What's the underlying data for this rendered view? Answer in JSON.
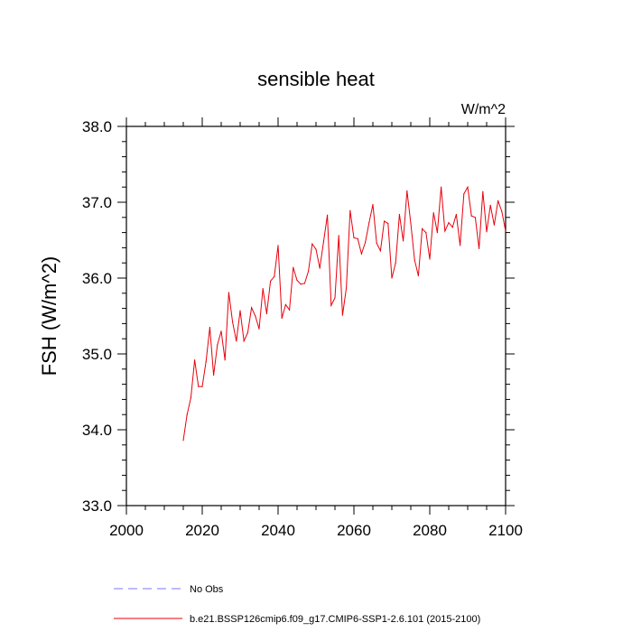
{
  "chart_data": {
    "type": "line",
    "title": "sensible heat",
    "units_label": "W/m^2",
    "xlabel": "",
    "ylabel": "FSH  (W/m^2)",
    "xlim": [
      2000,
      2100
    ],
    "ylim": [
      33.0,
      38.0
    ],
    "x_ticks": [
      2000,
      2020,
      2040,
      2060,
      2080,
      2100
    ],
    "x_tick_labels": [
      "2000",
      "2020",
      "2040",
      "2060",
      "2080",
      "2100"
    ],
    "y_ticks": [
      33.0,
      34.0,
      35.0,
      36.0,
      37.0,
      38.0
    ],
    "y_tick_labels": [
      "33.0",
      "34.0",
      "35.0",
      "36.0",
      "37.0",
      "38.0"
    ],
    "series": [
      {
        "name": "b.e21.BSSP126cmip6.f09_g17.CMIP6-SSP1-2.6.101 (2015-2100)",
        "color": "#e8000b",
        "x": [
          2015,
          2016,
          2017,
          2018,
          2019,
          2020,
          2021,
          2022,
          2023,
          2024,
          2025,
          2026,
          2027,
          2028,
          2029,
          2030,
          2031,
          2032,
          2033,
          2034,
          2035,
          2036,
          2037,
          2038,
          2039,
          2040,
          2041,
          2042,
          2043,
          2044,
          2045,
          2046,
          2047,
          2048,
          2049,
          2050,
          2051,
          2052,
          2053,
          2054,
          2055,
          2056,
          2057,
          2058,
          2059,
          2060,
          2061,
          2062,
          2063,
          2064,
          2065,
          2066,
          2067,
          2068,
          2069,
          2070,
          2071,
          2072,
          2073,
          2074,
          2075,
          2076,
          2077,
          2078,
          2079,
          2080,
          2081,
          2082,
          2083,
          2084,
          2085,
          2086,
          2087,
          2088,
          2089,
          2090,
          2091,
          2092,
          2093,
          2094,
          2095,
          2096,
          2097,
          2098,
          2099,
          2100
        ],
        "values": [
          33.86,
          34.2,
          34.42,
          34.92,
          34.57,
          34.57,
          34.9,
          35.35,
          34.72,
          35.12,
          35.3,
          34.92,
          35.81,
          35.42,
          35.17,
          35.57,
          35.17,
          35.28,
          35.61,
          35.5,
          35.33,
          35.86,
          35.53,
          35.96,
          36.02,
          36.43,
          35.47,
          35.65,
          35.58,
          36.14,
          35.97,
          35.92,
          35.93,
          36.09,
          36.45,
          36.38,
          36.13,
          36.48,
          36.83,
          35.64,
          35.74,
          36.56,
          35.51,
          35.87,
          36.89,
          36.53,
          36.52,
          36.32,
          36.47,
          36.73,
          36.97,
          36.46,
          36.36,
          36.75,
          36.72,
          36.0,
          36.2,
          36.84,
          36.49,
          37.15,
          36.72,
          36.24,
          36.03,
          36.65,
          36.6,
          36.25,
          36.86,
          36.6,
          37.2,
          36.62,
          36.73,
          36.67,
          36.84,
          36.43,
          37.11,
          37.2,
          36.82,
          36.8,
          36.39,
          37.14,
          36.61,
          36.96,
          36.7,
          37.02,
          36.88,
          36.62
        ]
      }
    ],
    "legend": [
      {
        "label": "No Obs",
        "color": "#7777ff",
        "style": "dashed"
      },
      {
        "label": "b.e21.BSSP126cmip6.f09_g17.CMIP6-SSP1-2.6.101 (2015-2100)",
        "color": "#e8000b",
        "style": "solid"
      }
    ],
    "legend_position": "bottom-left",
    "grid": false
  }
}
